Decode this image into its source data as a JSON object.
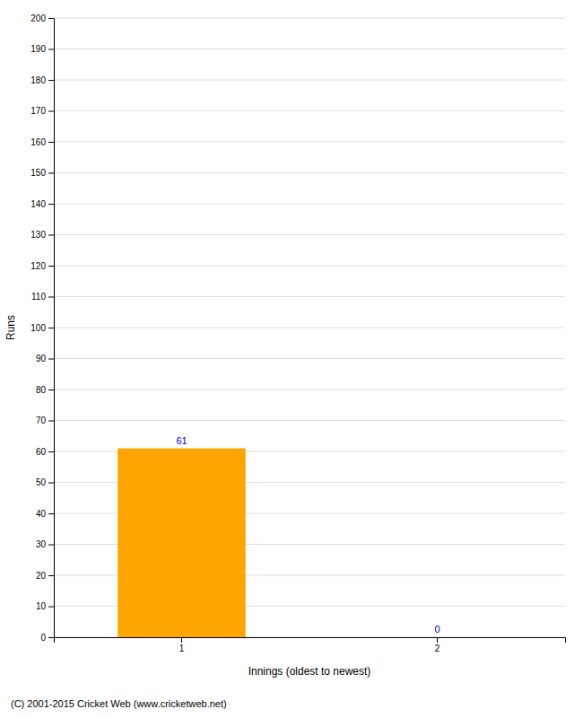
{
  "chart_data": {
    "type": "bar",
    "categories": [
      "1",
      "2"
    ],
    "values": [
      61,
      0
    ],
    "color": "#FFA500",
    "xlabel": "Innings (oldest to newest)",
    "ylabel": "Runs",
    "ylim": [
      0,
      200
    ],
    "yticks": [
      0,
      10,
      20,
      30,
      40,
      50,
      60,
      70,
      80,
      90,
      100,
      110,
      120,
      130,
      140,
      150,
      160,
      170,
      180,
      190,
      200
    ],
    "grid": true,
    "data_labels": true,
    "annotations": [
      "(C) 2001-2015 Cricket Web (www.cricketweb.net)"
    ]
  }
}
